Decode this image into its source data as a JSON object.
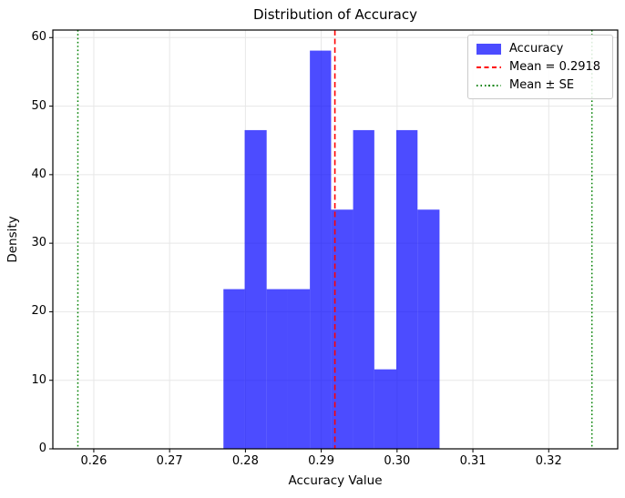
{
  "chart_data": {
    "type": "bar",
    "subtype": "histogram",
    "title": "Distribution of Accuracy",
    "xlabel": "Accuracy Value",
    "ylabel": "Density",
    "bin_edges": [
      0.2771,
      0.2799,
      0.2828,
      0.2856,
      0.2885,
      0.2913,
      0.2942,
      0.297,
      0.2999,
      0.3027,
      0.3056
    ],
    "densities": [
      23.3,
      46.5,
      23.3,
      23.3,
      58.1,
      34.9,
      46.5,
      11.6,
      46.5,
      34.9
    ],
    "mean": 0.2918,
    "mean_minus_se": 0.2579,
    "mean_plus_se": 0.3257,
    "xlim": [
      0.2546,
      0.3291
    ],
    "ylim": [
      0,
      61.1
    ],
    "xticks": [
      0.26,
      0.27,
      0.28,
      0.29,
      0.3,
      0.31,
      0.32
    ],
    "xtick_labels": [
      "0.26",
      "0.27",
      "0.28",
      "0.29",
      "0.30",
      "0.31",
      "0.32"
    ],
    "yticks": [
      0,
      10,
      20,
      30,
      40,
      50,
      60
    ],
    "ytick_labels": [
      "0",
      "10",
      "20",
      "30",
      "40",
      "50",
      "60"
    ],
    "grid": true,
    "legend_position": "upper right",
    "colors": {
      "bar": "rgba(0,0,255,0.7)",
      "mean_line": "#ff0000",
      "se_line": "#008000",
      "grid": "#e7e7e7",
      "axes": "#000000"
    }
  },
  "legend": {
    "entries": [
      {
        "label": "Accuracy",
        "swatch": "blue-patch",
        "color": "rgba(0,0,255,0.7)"
      },
      {
        "label": "Mean = 0.2918",
        "swatch": "red-dashed-line",
        "color": "#ff0000"
      },
      {
        "label": "Mean ± SE",
        "swatch": "green-dotted-line",
        "color": "#008000"
      }
    ]
  }
}
